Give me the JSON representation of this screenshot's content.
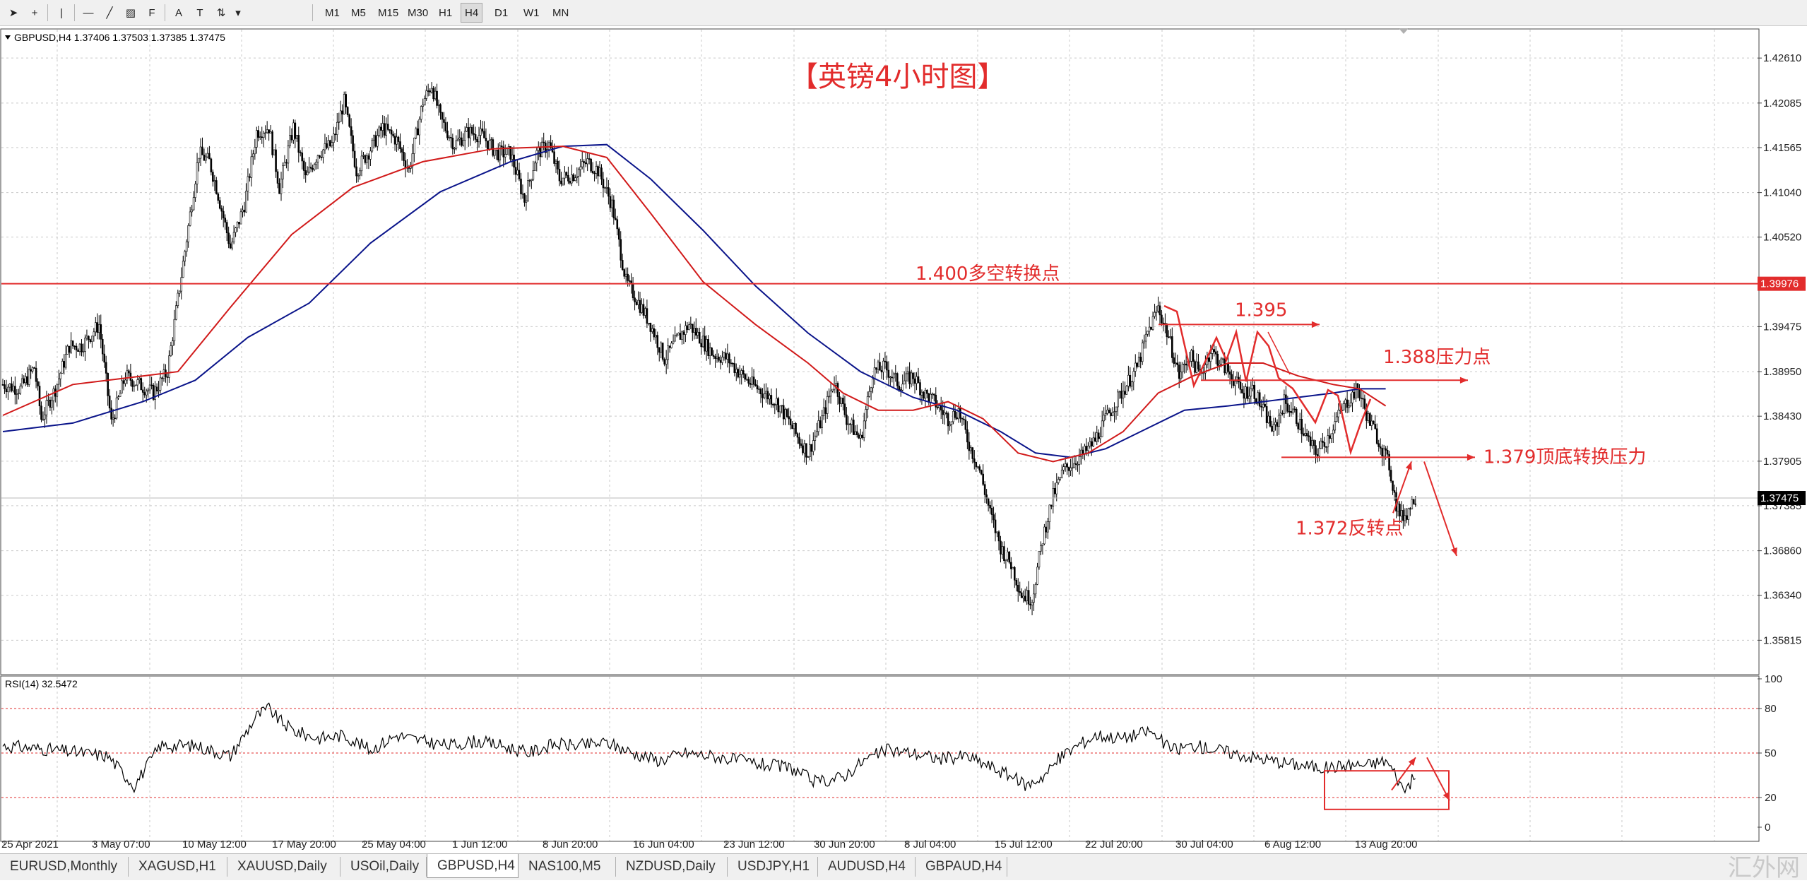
{
  "toolbar": {
    "tools": [
      {
        "name": "cursor-icon",
        "glyph": "➤"
      },
      {
        "name": "crosshair-icon",
        "glyph": "+"
      },
      {
        "name": "vertical-line-icon",
        "glyph": "|"
      },
      {
        "name": "horizontal-line-icon",
        "glyph": "—"
      },
      {
        "name": "trendline-icon",
        "glyph": "╱"
      },
      {
        "name": "channel-icon",
        "glyph": "▨"
      },
      {
        "name": "fibonacci-icon",
        "glyph": "F"
      },
      {
        "name": "text-icon",
        "glyph": "A"
      },
      {
        "name": "label-icon",
        "glyph": "T"
      },
      {
        "name": "arrows-icon",
        "glyph": "⇅"
      }
    ],
    "timeframes": [
      "M1",
      "M5",
      "M15",
      "M30",
      "H1",
      "H4",
      "D1",
      "W1",
      "MN"
    ],
    "active_timeframe": "H4"
  },
  "header": {
    "title": "GBPUSD,H4  1.37406 1.37503 1.37385 1.37475",
    "rsi_title": "RSI(14) 32.5472"
  },
  "colors": {
    "candle": "#000000",
    "ma_fast": "#d11a1a",
    "ma_slow": "#0a148a",
    "annotation": "#e22c2c",
    "rsi": "#000000",
    "grid": "#c9c9c9"
  },
  "annotations": {
    "title": "【英镑4小时图】",
    "pivot_label": "1.400多空转换点",
    "label_1395": "1.395",
    "label_1388": "1.388压力点",
    "label_1379": "1.379顶底转换压力",
    "label_1372": "1.372反转点"
  },
  "chart_data": {
    "type": "candlestick",
    "symbol": "GBPUSD",
    "timeframe": "H4",
    "ohlc_current": {
      "open": 1.37406,
      "high": 1.37503,
      "low": 1.37385,
      "close": 1.37475
    },
    "price_ticks": [
      1.4261,
      1.42085,
      1.41565,
      1.4104,
      1.4052,
      1.39475,
      1.3895,
      1.3843,
      1.37905,
      1.37385,
      1.3686,
      1.3634,
      1.35815
    ],
    "price_range": [
      1.3548,
      1.429
    ],
    "current_price_label": "1.37475",
    "pivot_price_label": "1.39976",
    "pivot_price": 1.39976,
    "x_labels": [
      "25 Apr 2021",
      "3 May 07:00",
      "10 May 12:00",
      "17 May 20:00",
      "25 May 04:00",
      "1 Jun 12:00",
      "8 Jun 20:00",
      "16 Jun 04:00",
      "23 Jun 12:00",
      "30 Jun 20:00",
      "8 Jul 04:00",
      "15 Jul 12:00",
      "22 Jul 20:00",
      "30 Jul 04:00",
      "6 Aug 12:00",
      "13 Aug 20:00"
    ],
    "price_path": [
      [
        0,
        1.388
      ],
      [
        10,
        1.3875
      ],
      [
        18,
        1.39
      ],
      [
        22,
        1.384
      ],
      [
        30,
        1.3875
      ],
      [
        38,
        1.3925
      ],
      [
        45,
        1.3925
      ],
      [
        55,
        1.395
      ],
      [
        62,
        1.3835
      ],
      [
        70,
        1.389
      ],
      [
        78,
        1.388
      ],
      [
        86,
        1.387
      ],
      [
        94,
        1.3895
      ],
      [
        105,
        1.405
      ],
      [
        112,
        1.415
      ],
      [
        118,
        1.414
      ],
      [
        122,
        1.411
      ],
      [
        130,
        1.404
      ],
      [
        138,
        1.409
      ],
      [
        145,
        1.4175
      ],
      [
        152,
        1.418
      ],
      [
        158,
        1.411
      ],
      [
        166,
        1.418
      ],
      [
        173,
        1.412
      ],
      [
        180,
        1.415
      ],
      [
        188,
        1.416
      ],
      [
        195,
        1.421
      ],
      [
        202,
        1.413
      ],
      [
        210,
        1.4155
      ],
      [
        217,
        1.418
      ],
      [
        225,
        1.4165
      ],
      [
        232,
        1.413
      ],
      [
        240,
        1.421
      ],
      [
        245,
        1.423
      ],
      [
        250,
        1.419
      ],
      [
        258,
        1.416
      ],
      [
        266,
        1.4175
      ],
      [
        274,
        1.417
      ],
      [
        282,
        1.415
      ],
      [
        290,
        1.415
      ],
      [
        298,
        1.4095
      ],
      [
        305,
        1.415
      ],
      [
        312,
        1.416
      ],
      [
        318,
        1.412
      ],
      [
        326,
        1.4125
      ],
      [
        334,
        1.414
      ],
      [
        340,
        1.413
      ],
      [
        348,
        1.409
      ],
      [
        356,
        1.4
      ],
      [
        362,
        1.398
      ],
      [
        370,
        1.395
      ],
      [
        378,
        1.391
      ],
      [
        386,
        1.3935
      ],
      [
        392,
        1.395
      ],
      [
        398,
        1.3935
      ],
      [
        406,
        1.3915
      ],
      [
        414,
        1.391
      ],
      [
        420,
        1.3895
      ],
      [
        428,
        1.388
      ],
      [
        435,
        1.387
      ],
      [
        442,
        1.386
      ],
      [
        448,
        1.384
      ],
      [
        455,
        1.3815
      ],
      [
        460,
        1.38
      ],
      [
        468,
        1.384
      ],
      [
        475,
        1.3885
      ],
      [
        482,
        1.384
      ],
      [
        490,
        1.3815
      ],
      [
        497,
        1.3895
      ],
      [
        504,
        1.39
      ],
      [
        512,
        1.388
      ],
      [
        520,
        1.389
      ],
      [
        526,
        1.387
      ],
      [
        532,
        1.386
      ],
      [
        540,
        1.384
      ],
      [
        546,
        1.385
      ],
      [
        552,
        1.381
      ],
      [
        558,
        1.378
      ],
      [
        564,
        1.373
      ],
      [
        570,
        1.369
      ],
      [
        576,
        1.367
      ],
      [
        582,
        1.3635
      ],
      [
        588,
        1.363
      ],
      [
        594,
        1.37
      ],
      [
        600,
        1.375
      ],
      [
        606,
        1.378
      ],
      [
        612,
        1.379
      ],
      [
        618,
        1.38
      ],
      [
        624,
        1.3815
      ],
      [
        630,
        1.384
      ],
      [
        636,
        1.386
      ],
      [
        642,
        1.388
      ],
      [
        648,
        1.39
      ],
      [
        654,
        1.394
      ],
      [
        660,
        1.397
      ],
      [
        666,
        1.3935
      ],
      [
        672,
        1.389
      ],
      [
        678,
        1.3915
      ],
      [
        684,
        1.389
      ],
      [
        690,
        1.392
      ],
      [
        696,
        1.3905
      ],
      [
        702,
        1.389
      ],
      [
        708,
        1.387
      ],
      [
        714,
        1.3875
      ],
      [
        720,
        1.385
      ],
      [
        726,
        1.3825
      ],
      [
        732,
        1.386
      ],
      [
        738,
        1.3845
      ],
      [
        744,
        1.382
      ],
      [
        750,
        1.38
      ],
      [
        756,
        1.3815
      ],
      [
        762,
        1.384
      ],
      [
        768,
        1.386
      ],
      [
        774,
        1.3875
      ],
      [
        780,
        1.384
      ],
      [
        786,
        1.3815
      ],
      [
        792,
        1.3785
      ],
      [
        796,
        1.374
      ],
      [
        799,
        1.3725
      ],
      [
        802,
        1.373
      ],
      [
        806,
        1.3747
      ]
    ],
    "ma_fast_path": [
      [
        0,
        1.3844
      ],
      [
        40,
        1.388
      ],
      [
        80,
        1.389
      ],
      [
        100,
        1.3895
      ],
      [
        130,
        1.397
      ],
      [
        165,
        1.4055
      ],
      [
        200,
        1.411
      ],
      [
        240,
        1.414
      ],
      [
        280,
        1.4155
      ],
      [
        320,
        1.4158
      ],
      [
        345,
        1.4145
      ],
      [
        370,
        1.408
      ],
      [
        400,
        1.4
      ],
      [
        430,
        1.395
      ],
      [
        460,
        1.3905
      ],
      [
        480,
        1.387
      ],
      [
        500,
        1.385
      ],
      [
        520,
        1.385
      ],
      [
        540,
        1.386
      ],
      [
        560,
        1.384
      ],
      [
        580,
        1.38
      ],
      [
        600,
        1.379
      ],
      [
        620,
        1.38
      ],
      [
        640,
        1.3825
      ],
      [
        660,
        1.387
      ],
      [
        680,
        1.389
      ],
      [
        700,
        1.3905
      ],
      [
        720,
        1.3905
      ],
      [
        740,
        1.389
      ],
      [
        760,
        1.388
      ],
      [
        775,
        1.3875
      ],
      [
        790,
        1.3855
      ]
    ],
    "ma_slow_path": [
      [
        0,
        1.3825
      ],
      [
        40,
        1.3835
      ],
      [
        80,
        1.386
      ],
      [
        110,
        1.3885
      ],
      [
        140,
        1.3935
      ],
      [
        175,
        1.3975
      ],
      [
        210,
        1.4045
      ],
      [
        250,
        1.4105
      ],
      [
        290,
        1.414
      ],
      [
        320,
        1.4158
      ],
      [
        345,
        1.416
      ],
      [
        370,
        1.412
      ],
      [
        400,
        1.406
      ],
      [
        430,
        1.3995
      ],
      [
        460,
        1.394
      ],
      [
        490,
        1.3895
      ],
      [
        520,
        1.3865
      ],
      [
        545,
        1.385
      ],
      [
        570,
        1.3825
      ],
      [
        590,
        1.38
      ],
      [
        610,
        1.3795
      ],
      [
        630,
        1.3805
      ],
      [
        650,
        1.3825
      ],
      [
        675,
        1.385
      ],
      [
        700,
        1.3855
      ],
      [
        720,
        1.386
      ],
      [
        740,
        1.3865
      ],
      [
        760,
        1.387
      ],
      [
        775,
        1.3875
      ],
      [
        790,
        1.3875
      ]
    ],
    "rsi": {
      "period": 14,
      "value": 32.5472,
      "levels": [
        20,
        50,
        80
      ],
      "ticks": [
        100,
        80,
        50,
        20,
        0
      ],
      "path": [
        [
          0,
          55
        ],
        [
          30,
          52
        ],
        [
          60,
          48
        ],
        [
          75,
          28
        ],
        [
          90,
          55
        ],
        [
          110,
          55
        ],
        [
          130,
          48
        ],
        [
          145,
          75
        ],
        [
          152,
          80
        ],
        [
          158,
          72
        ],
        [
          166,
          65
        ],
        [
          180,
          60
        ],
        [
          195,
          62
        ],
        [
          210,
          52
        ],
        [
          225,
          62
        ],
        [
          240,
          58
        ],
        [
          255,
          55
        ],
        [
          270,
          58
        ],
        [
          285,
          55
        ],
        [
          300,
          50
        ],
        [
          315,
          56
        ],
        [
          330,
          55
        ],
        [
          345,
          57
        ],
        [
          360,
          50
        ],
        [
          375,
          45
        ],
        [
          390,
          50
        ],
        [
          405,
          48
        ],
        [
          420,
          45
        ],
        [
          435,
          42
        ],
        [
          450,
          40
        ],
        [
          465,
          30
        ],
        [
          480,
          34
        ],
        [
          492,
          45
        ],
        [
          505,
          52
        ],
        [
          520,
          50
        ],
        [
          535,
          46
        ],
        [
          550,
          48
        ],
        [
          562,
          42
        ],
        [
          575,
          35
        ],
        [
          585,
          28
        ],
        [
          595,
          35
        ],
        [
          605,
          48
        ],
        [
          615,
          56
        ],
        [
          625,
          62
        ],
        [
          640,
          60
        ],
        [
          655,
          65
        ],
        [
          668,
          52
        ],
        [
          680,
          55
        ],
        [
          695,
          52
        ],
        [
          710,
          48
        ],
        [
          725,
          45
        ],
        [
          740,
          42
        ],
        [
          755,
          40
        ],
        [
          770,
          42
        ],
        [
          780,
          42
        ],
        [
          790,
          45
        ],
        [
          796,
          35
        ],
        [
          800,
          25
        ],
        [
          804,
          30
        ],
        [
          806,
          32.5
        ]
      ]
    }
  },
  "tabs": [
    {
      "label": "EURUSD,Monthly",
      "active": false
    },
    {
      "label": "XAGUSD,H1",
      "active": false
    },
    {
      "label": "XAUUSD,Daily",
      "active": false
    },
    {
      "label": "USOil,Daily",
      "active": false
    },
    {
      "label": "GBPUSD,H4",
      "active": true
    },
    {
      "label": "NAS100,M5",
      "active": false
    },
    {
      "label": "NZDUSD,Daily",
      "active": false
    },
    {
      "label": "USDJPY,H1",
      "active": false
    },
    {
      "label": "AUDUSD,H4",
      "active": false
    },
    {
      "label": "GBPAUD,H4",
      "active": false
    }
  ],
  "watermark": "汇外网"
}
